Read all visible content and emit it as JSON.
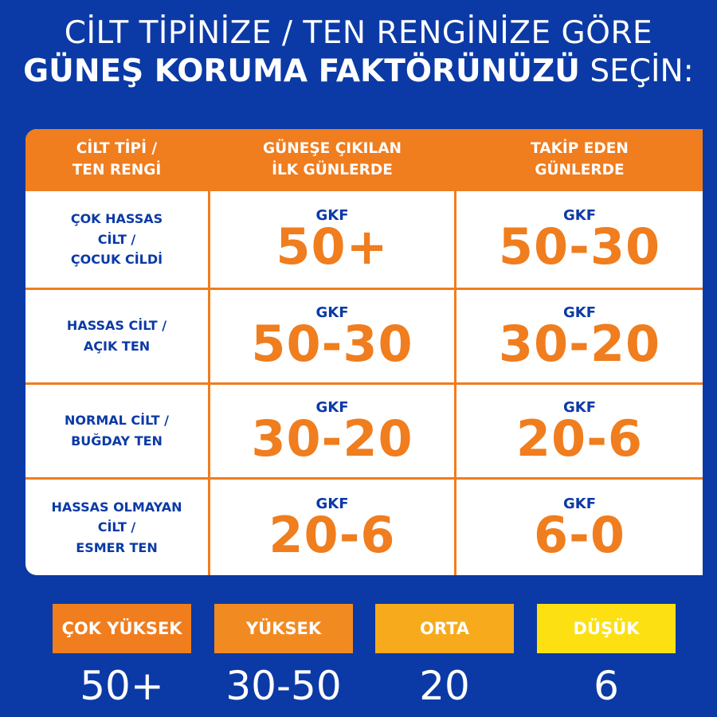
{
  "title": {
    "line1": "CİLT TİPİNİZE / TEN RENGİNİZE GÖRE",
    "line2_bold": "GÜNEŞ KORUMA FAKTÖRÜNÜZÜ",
    "line2_regular": "SEÇİN:"
  },
  "table": {
    "headers": [
      [
        "CİLT TİPİ /",
        "TEN RENGİ"
      ],
      [
        "GÜNEŞE ÇIKILAN",
        "İLK GÜNLERDE"
      ],
      [
        "TAKİP EDEN",
        "GÜNLERDE"
      ]
    ],
    "rows": [
      {
        "label": [
          "ÇOK HASSAS",
          "CİLT /",
          "ÇOCUK CİLDİ"
        ],
        "first_prefix": "GKF",
        "first": "50+",
        "next_prefix": "GKF",
        "next": "50-30"
      },
      {
        "label": [
          "HASSAS CİLT /",
          "AÇIK TEN"
        ],
        "first_prefix": "GKF",
        "first": "50-30",
        "next_prefix": "GKF",
        "next": "30-20"
      },
      {
        "label": [
          "NORMAL CİLT /",
          "BUĞDAY TEN"
        ],
        "first_prefix": "GKF",
        "first": "30-20",
        "next_prefix": "GKF",
        "next": "20-6"
      },
      {
        "label": [
          "HASSAS OLMAYAN",
          "CİLT /",
          "ESMER TEN"
        ],
        "first_prefix": "GKF",
        "first": "20-6",
        "next_prefix": "GKF",
        "next": "6-0"
      }
    ]
  },
  "legend": [
    {
      "label": "ÇOK YÜKSEK",
      "value": "50+",
      "color": "#f07d1e"
    },
    {
      "label": "YÜKSEK",
      "value": "30-50",
      "color": "#f28a22"
    },
    {
      "label": "ORTA",
      "value": "20",
      "color": "#f7aa1c"
    },
    {
      "label": "DÜŞÜK",
      "value": "6",
      "color": "#fde012"
    }
  ],
  "colors": {
    "background": "#0b3aa6",
    "accent": "#f07d1e",
    "text_blue": "#0b3aa6"
  }
}
